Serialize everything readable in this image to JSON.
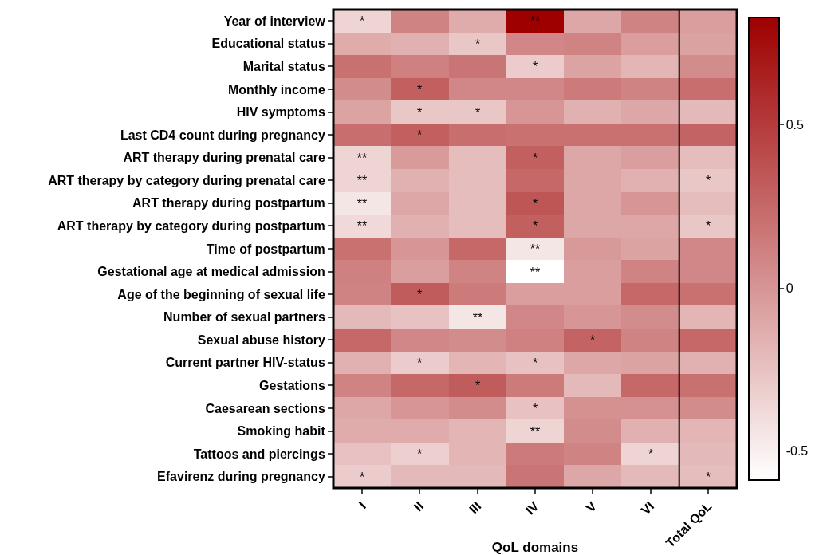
{
  "chart_data": {
    "type": "heatmap",
    "xlabel": "QoL domains",
    "categories": [
      "I",
      "II",
      "III",
      "IV",
      "V",
      "VI",
      "Total QoL"
    ],
    "y_categories": [
      "Year of interview",
      "Educational status",
      "Marital status",
      "Monthly income",
      "HIV symptoms",
      "Last CD4 count during pregnancy",
      "ART therapy during prenatal care",
      "ART therapy by category during prenatal care",
      "ART therapy during postpartum",
      "ART therapy by category during postpartum",
      "Time of postpartum",
      "Gestational age at medical admission",
      "Age of the beginning of sexual life",
      "Number of sexual partners",
      "Sexual abuse history",
      "Current partner HIV-status",
      "Gestations",
      "Caesarean sections",
      "Smoking habit",
      "Tattoos and piercings",
      "Efavirenz during pregnancy"
    ],
    "cells": [
      [
        -0.35,
        0.1,
        -0.12,
        0.83,
        -0.1,
        0.1,
        -0.05
      ],
      [
        -0.12,
        -0.15,
        -0.28,
        0.08,
        0.1,
        -0.05,
        -0.07
      ],
      [
        0.2,
        0.12,
        0.18,
        -0.3,
        -0.08,
        -0.18,
        0.05
      ],
      [
        0.05,
        0.3,
        0.08,
        0.08,
        0.15,
        0.1,
        0.22
      ],
      [
        -0.08,
        -0.28,
        -0.28,
        0.0,
        -0.15,
        -0.1,
        -0.2
      ],
      [
        0.22,
        0.3,
        0.22,
        0.2,
        0.2,
        0.2,
        0.28
      ],
      [
        -0.35,
        -0.03,
        -0.22,
        0.3,
        -0.1,
        -0.05,
        -0.22
      ],
      [
        -0.35,
        -0.15,
        -0.22,
        0.25,
        -0.1,
        -0.15,
        -0.28
      ],
      [
        -0.45,
        -0.1,
        -0.22,
        0.35,
        -0.1,
        0.0,
        -0.22
      ],
      [
        -0.38,
        -0.15,
        -0.22,
        0.3,
        -0.1,
        -0.1,
        -0.28
      ],
      [
        0.2,
        0.0,
        0.25,
        -0.45,
        -0.02,
        -0.08,
        0.08
      ],
      [
        0.12,
        -0.05,
        0.1,
        -0.59,
        -0.05,
        0.1,
        0.08
      ],
      [
        0.1,
        0.32,
        0.15,
        -0.05,
        -0.05,
        0.25,
        0.2
      ],
      [
        -0.2,
        -0.25,
        -0.45,
        0.08,
        0.0,
        0.05,
        -0.18
      ],
      [
        0.25,
        0.08,
        0.05,
        0.12,
        0.28,
        0.1,
        0.25
      ],
      [
        -0.15,
        -0.3,
        -0.18,
        -0.25,
        -0.1,
        -0.08,
        -0.15
      ],
      [
        0.1,
        0.25,
        0.32,
        0.15,
        -0.2,
        0.25,
        0.2
      ],
      [
        -0.1,
        0.0,
        0.05,
        -0.25,
        0.03,
        0.02,
        0.05
      ],
      [
        -0.12,
        -0.12,
        -0.18,
        -0.35,
        0.05,
        -0.15,
        -0.18
      ],
      [
        -0.25,
        -0.32,
        -0.18,
        0.15,
        0.1,
        -0.35,
        -0.2
      ],
      [
        -0.3,
        -0.2,
        -0.2,
        0.18,
        -0.1,
        -0.2,
        -0.22
      ]
    ],
    "cell_labels": [
      [
        "*",
        null,
        null,
        "**",
        null,
        null,
        null
      ],
      [
        null,
        null,
        "*",
        null,
        null,
        null,
        null
      ],
      [
        null,
        null,
        null,
        "*",
        null,
        null,
        null
      ],
      [
        null,
        "*",
        null,
        null,
        null,
        null,
        null
      ],
      [
        null,
        "*",
        "*",
        null,
        null,
        null,
        null
      ],
      [
        null,
        "*",
        null,
        null,
        null,
        null,
        null
      ],
      [
        "**",
        null,
        null,
        "*",
        null,
        null,
        null
      ],
      [
        "**",
        null,
        null,
        null,
        null,
        null,
        "*"
      ],
      [
        "**",
        null,
        null,
        "*",
        null,
        null,
        null
      ],
      [
        "**",
        null,
        null,
        "*",
        null,
        null,
        "*"
      ],
      [
        null,
        null,
        null,
        "**",
        null,
        null,
        null
      ],
      [
        null,
        null,
        null,
        "**",
        null,
        null,
        null
      ],
      [
        null,
        "*",
        null,
        null,
        null,
        null,
        null
      ],
      [
        null,
        null,
        "**",
        null,
        null,
        null,
        null
      ],
      [
        null,
        null,
        null,
        null,
        "*",
        null,
        null
      ],
      [
        null,
        "*",
        null,
        "*",
        null,
        null,
        null
      ],
      [
        null,
        null,
        "*",
        null,
        null,
        null,
        null
      ],
      [
        null,
        null,
        null,
        "*",
        null,
        null,
        null
      ],
      [
        null,
        null,
        null,
        "**",
        null,
        null,
        null
      ],
      [
        null,
        "*",
        null,
        null,
        null,
        "*",
        null
      ],
      [
        "*",
        null,
        null,
        null,
        null,
        null,
        "*"
      ]
    ],
    "clim": [
      -0.59,
      0.83
    ],
    "cticks": [
      -0.5,
      0,
      0.5
    ]
  }
}
